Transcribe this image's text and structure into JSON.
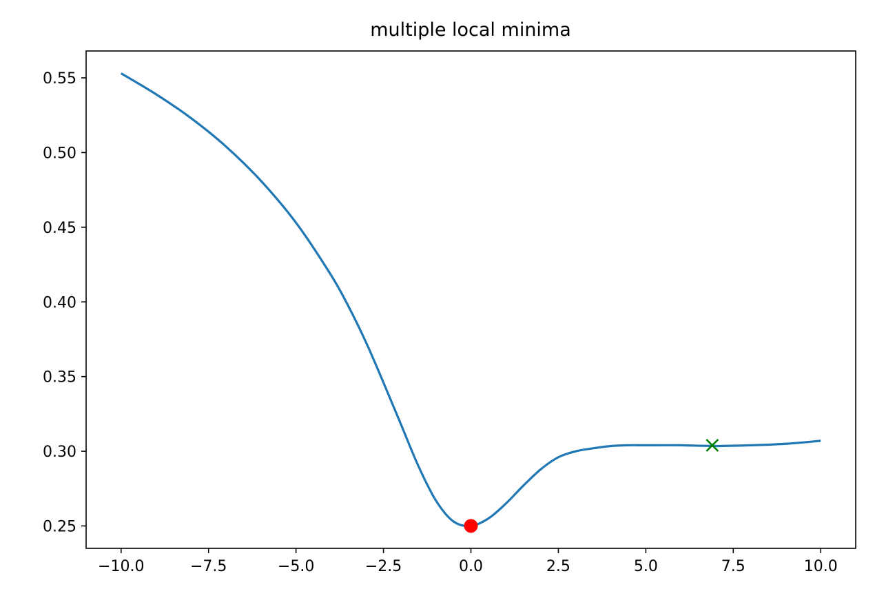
{
  "chart_data": {
    "type": "line",
    "title": "multiple local minima",
    "xlabel": "",
    "ylabel": "",
    "xlim": [
      -11.0,
      11.0
    ],
    "ylim": [
      0.235,
      0.568
    ],
    "x_ticks": [
      -10.0,
      -7.5,
      -5.0,
      -2.5,
      0.0,
      2.5,
      5.0,
      7.5,
      10.0
    ],
    "x_tick_labels": [
      "−10.0",
      "−7.5",
      "−5.0",
      "−2.5",
      "0.0",
      "2.5",
      "5.0",
      "7.5",
      "10.0"
    ],
    "y_ticks": [
      0.25,
      0.3,
      0.35,
      0.4,
      0.45,
      0.5,
      0.55
    ],
    "y_tick_labels": [
      "0.25",
      "0.30",
      "0.35",
      "0.40",
      "0.45",
      "0.50",
      "0.55"
    ],
    "grid": false,
    "series": [
      {
        "color": "#1f77b4",
        "x": [
          -10.0,
          -9.0,
          -8.0,
          -7.0,
          -6.0,
          -5.0,
          -4.0,
          -3.5,
          -3.0,
          -2.5,
          -2.0,
          -1.5,
          -1.0,
          -0.5,
          0.0,
          0.5,
          1.0,
          1.5,
          2.0,
          2.5,
          3.0,
          3.5,
          4.0,
          4.5,
          5.0,
          6.0,
          7.0,
          8.0,
          9.0,
          10.0
        ],
        "y": [
          0.553,
          0.539,
          0.523,
          0.504,
          0.481,
          0.453,
          0.418,
          0.397,
          0.373,
          0.346,
          0.318,
          0.29,
          0.267,
          0.253,
          0.25,
          0.255,
          0.265,
          0.277,
          0.288,
          0.296,
          0.3,
          0.302,
          0.3035,
          0.304,
          0.304,
          0.304,
          0.3035,
          0.304,
          0.305,
          0.307
        ]
      }
    ],
    "markers": [
      {
        "x": 0.0,
        "y": 0.25,
        "shape": "circle",
        "color": "#ff0000"
      },
      {
        "x": 6.9,
        "y": 0.304,
        "shape": "x",
        "color": "#008000"
      }
    ]
  }
}
